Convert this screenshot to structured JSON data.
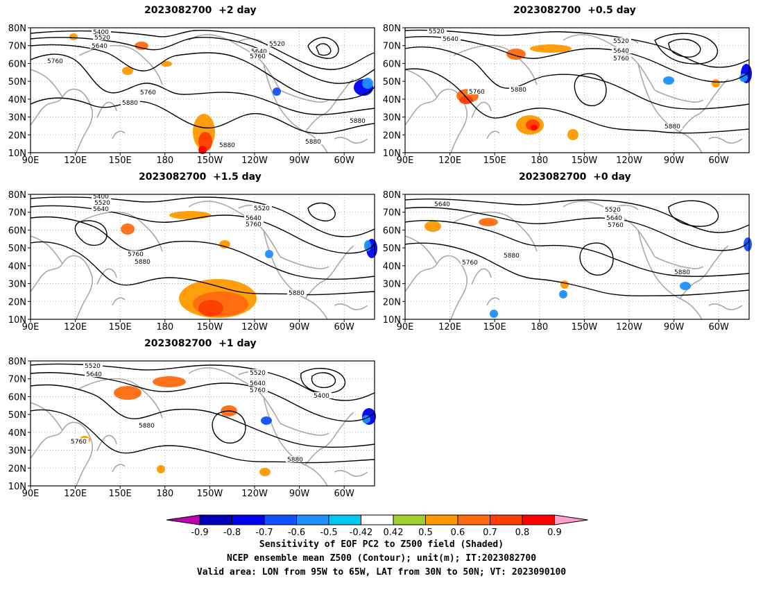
{
  "panels": [
    {
      "id": "p2",
      "title": "2023082700  +2 day",
      "contour_labels": [
        "5400",
        "5520",
        "5640",
        "5760",
        "5880",
        "5520",
        "5640",
        "5760",
        "5760",
        "5880",
        "5880",
        "5880"
      ]
    },
    {
      "id": "p05",
      "title": "2023082700  +0.5 day",
      "contour_labels": [
        "5520",
        "5640",
        "5520",
        "5640",
        "5760",
        "5760",
        "5880",
        "5880"
      ]
    },
    {
      "id": "p15",
      "title": "2023082700  +1.5 day",
      "contour_labels": [
        "5400",
        "5520",
        "5640",
        "5520",
        "5640",
        "5760",
        "5760",
        "5880",
        "5880"
      ]
    },
    {
      "id": "p0",
      "title": "2023082700  +0 day",
      "contour_labels": [
        "5640",
        "5520",
        "5640",
        "5760",
        "5760",
        "5880",
        "5880"
      ]
    },
    {
      "id": "p1",
      "title": "2023082700  +1 day",
      "contour_labels": [
        "5520",
        "5640",
        "5520",
        "5640",
        "5760",
        "5400",
        "5880",
        "5760",
        "5880"
      ]
    }
  ],
  "axes": {
    "lat_labels": [
      "80N",
      "70N",
      "60N",
      "50N",
      "40N",
      "30N",
      "20N",
      "10N"
    ],
    "lon_labels": [
      "90E",
      "120E",
      "150E",
      "180",
      "150W",
      "120W",
      "90W",
      "60W"
    ]
  },
  "colorbar": {
    "labels": [
      "-0.9",
      "-0.8",
      "-0.7",
      "-0.6",
      "-0.5",
      "-0.42",
      "0.42",
      "0.5",
      "0.6",
      "0.7",
      "0.8",
      "0.9"
    ],
    "colors": {
      "left_arrow": "#c000b0",
      "bins": [
        "#0000b8",
        "#0000f0",
        "#1050ff",
        "#1e90ff",
        "#00c8f0",
        "#ffffff",
        "#a0d030",
        "#ff9900",
        "#ff6a10",
        "#ff3d00",
        "#ff0000"
      ],
      "right_arrow": "#ffa0c8"
    }
  },
  "caption": {
    "line1": "Sensitivity of EOF PC2 to Z500 field (Shaded)",
    "line2": "NCEP ensemble mean Z500 (Contour); unit(m); IT:2023082700",
    "line3": "Valid area: LON from 95W to 65W, LAT from 30N to 50N; VT: 2023090100"
  }
}
